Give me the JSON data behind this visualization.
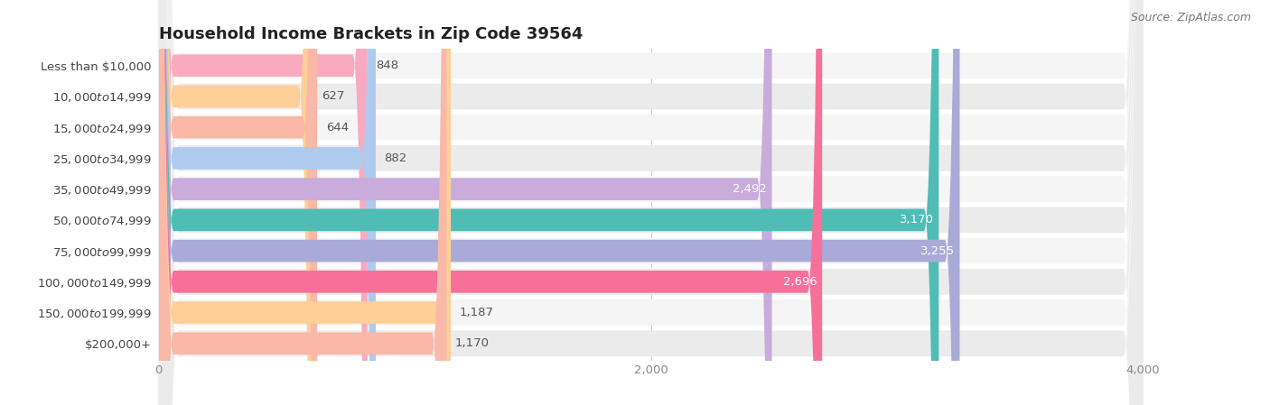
{
  "title": "Household Income Brackets in Zip Code 39564",
  "source": "Source: ZipAtlas.com",
  "categories": [
    "Less than $10,000",
    "$10,000 to $14,999",
    "$15,000 to $24,999",
    "$25,000 to $34,999",
    "$35,000 to $49,999",
    "$50,000 to $74,999",
    "$75,000 to $99,999",
    "$100,000 to $149,999",
    "$150,000 to $199,999",
    "$200,000+"
  ],
  "values": [
    848,
    627,
    644,
    882,
    2492,
    3170,
    3255,
    2696,
    1187,
    1170
  ],
  "bar_colors": [
    "#F9AABF",
    "#FECF96",
    "#F9B8A8",
    "#AECBEE",
    "#C9ABDC",
    "#4FBDB5",
    "#AAAAD8",
    "#F7709A",
    "#FECF96",
    "#F9B8A8"
  ],
  "label_colors_inside": [
    false,
    false,
    false,
    false,
    true,
    true,
    true,
    true,
    false,
    false
  ],
  "xlim_max": 4000,
  "xticks": [
    0,
    2000,
    4000
  ],
  "background_color": "#ffffff",
  "row_bg_even": "#f5f5f5",
  "row_bg_odd": "#ebebeb",
  "title_fontsize": 13,
  "cat_fontsize": 9.5,
  "val_fontsize": 9.5,
  "tick_fontsize": 9.5,
  "source_fontsize": 9
}
